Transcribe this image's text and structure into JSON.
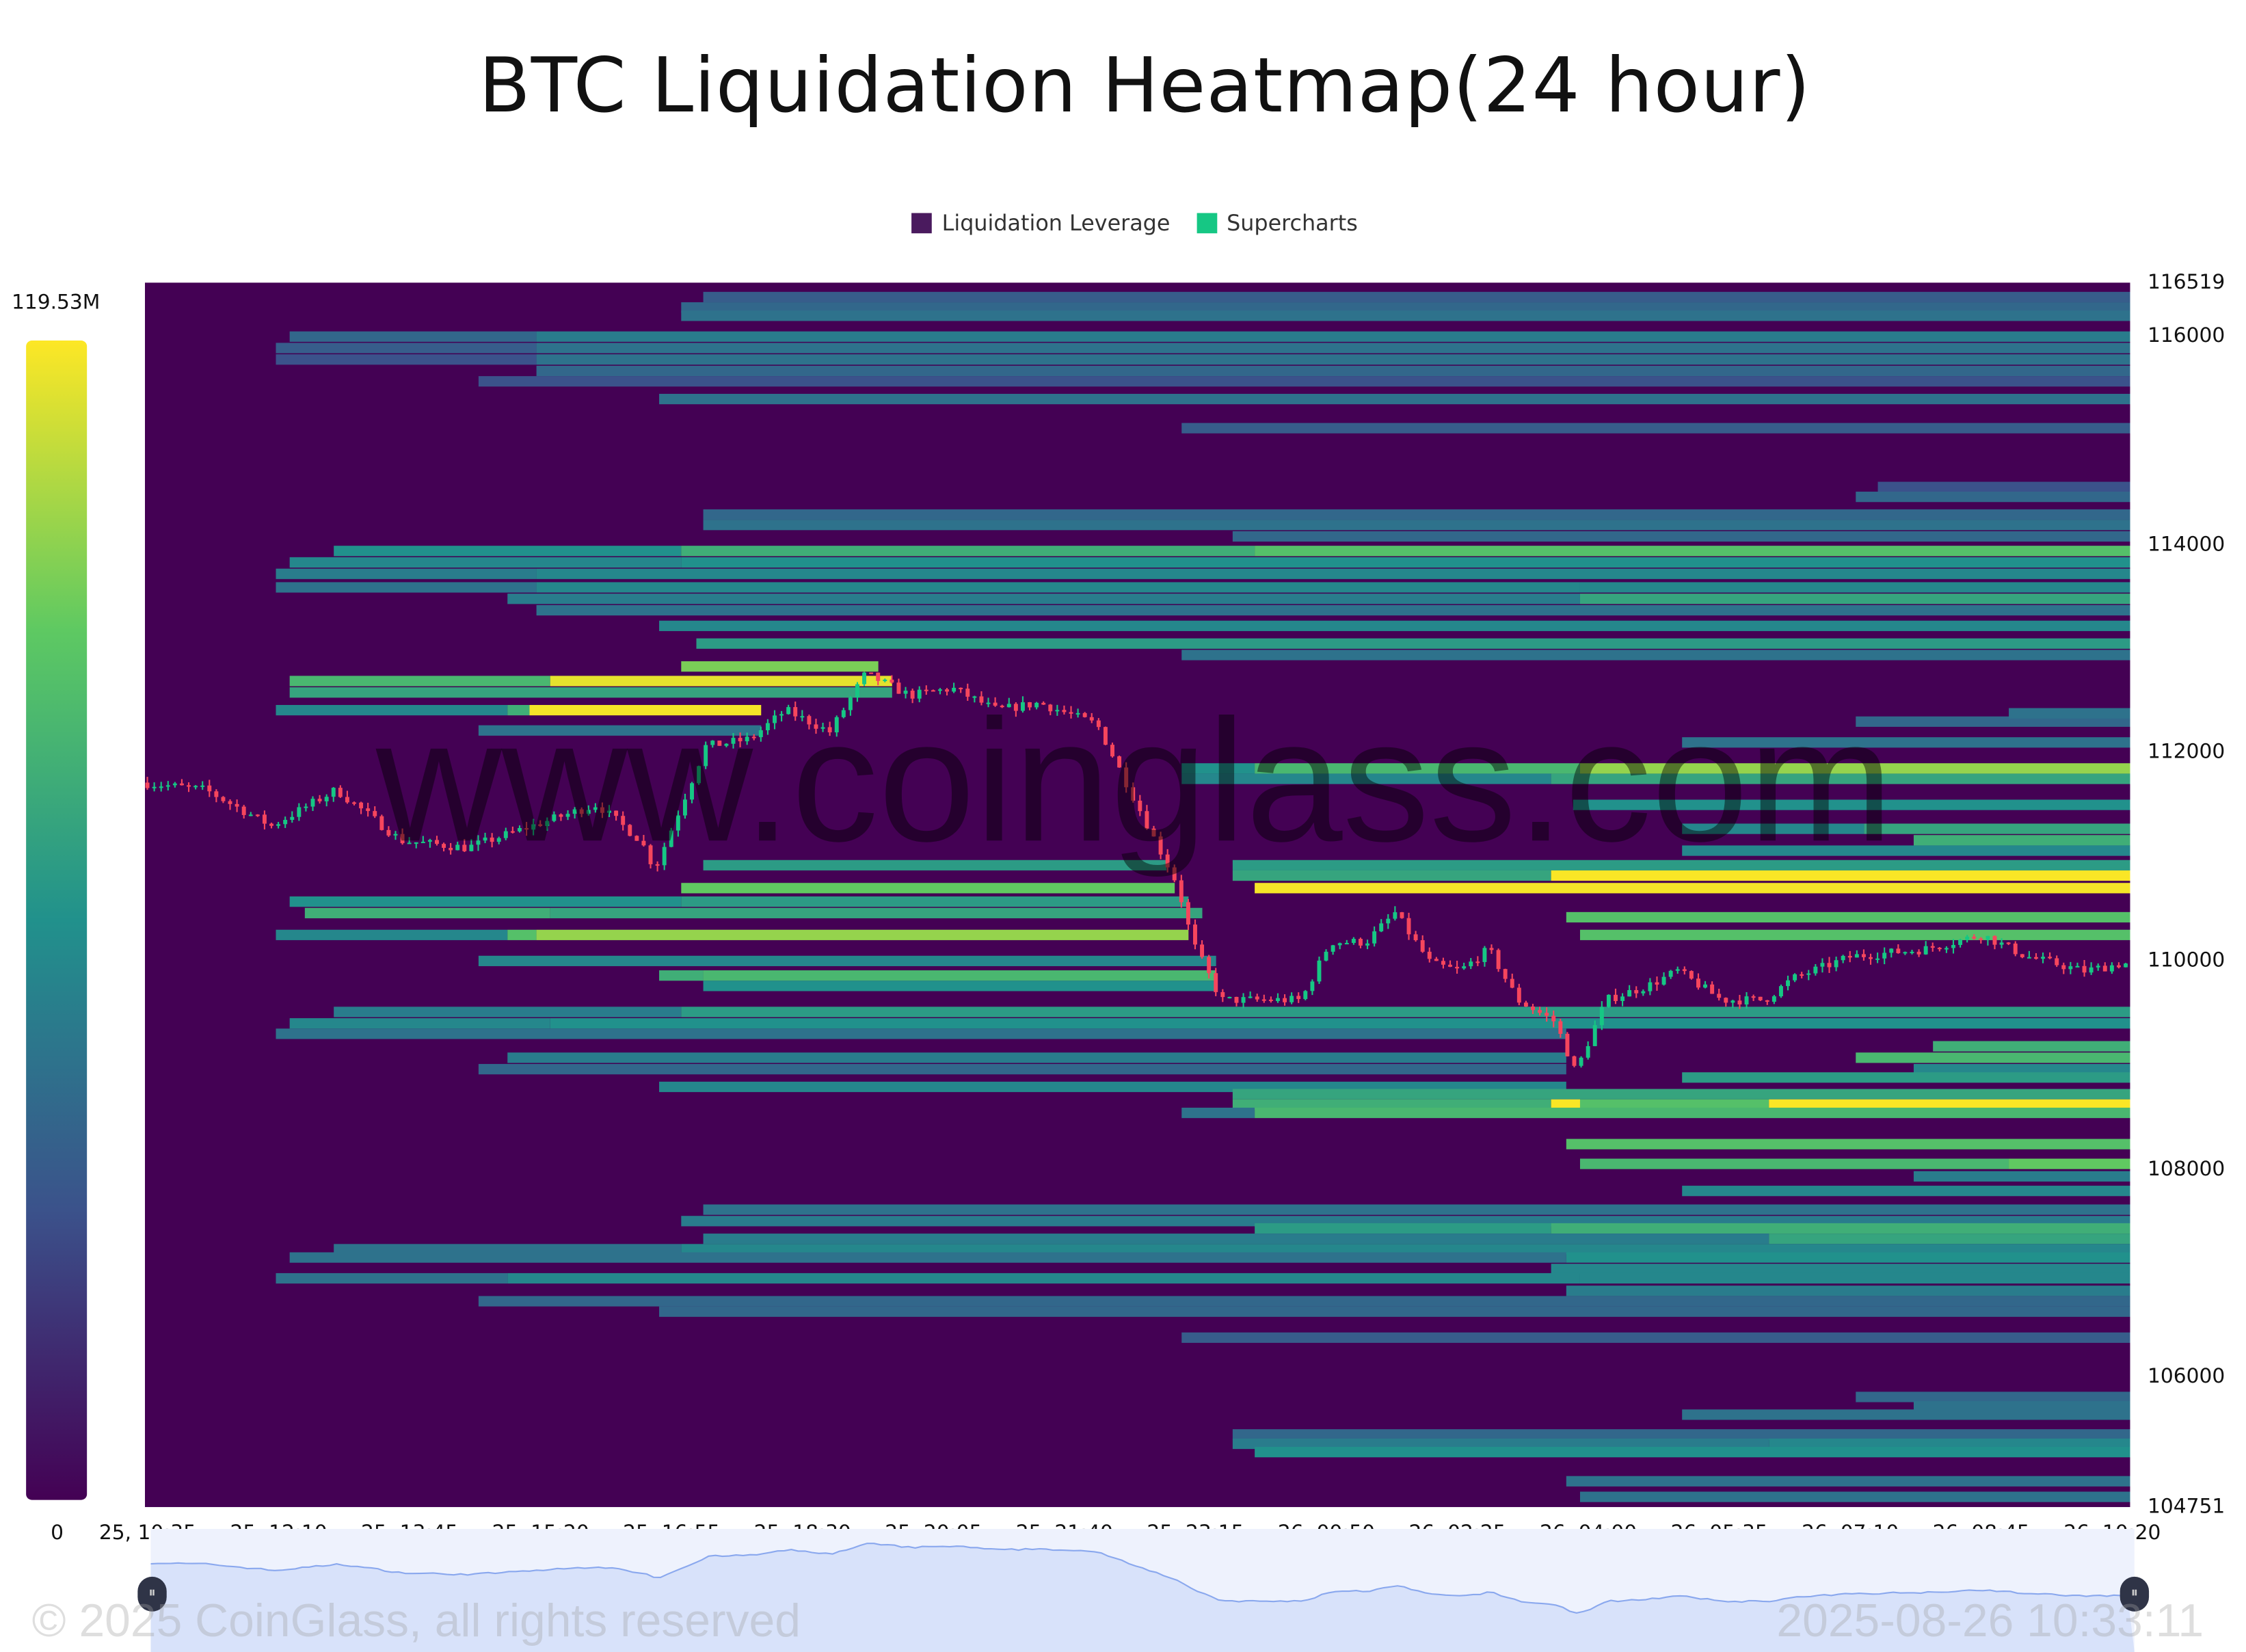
{
  "chart_data": {
    "type": "heatmap",
    "title": "BTC Liquidation Heatmap(24 hour)",
    "legend": [
      {
        "label": "Liquidation Leverage",
        "color": "#440154"
      },
      {
        "label": "Supercharts",
        "color": "#16c784"
      }
    ],
    "legend_placement": "top",
    "y_range": [
      104751,
      116519
    ],
    "y_ticks": [
      "116519",
      "116000",
      "114000",
      "112000",
      "110000",
      "108000",
      "106000",
      "104751"
    ],
    "x_start": "25 10:33",
    "x_end": "26 10:33",
    "x_ticks": [
      "25, 10:35",
      "25, 12:10",
      "25, 13:45",
      "25, 15:20",
      "25, 16:55",
      "25, 18:30",
      "25, 20:05",
      "25, 21:40",
      "25, 23:15",
      "26, 00:50",
      "26, 02:25",
      "26, 04:00",
      "26, 05:35",
      "26, 07:10",
      "26, 08:45",
      "26, 10:20"
    ],
    "colorbar": {
      "max_label": "119.53M",
      "min_label": "0",
      "max": 119.53,
      "colors": [
        "#440154",
        "#3b528b",
        "#21918c",
        "#5ec962",
        "#fde725"
      ]
    },
    "candle_colors": {
      "up": "#16c784",
      "down": "#f6465d"
    },
    "bands": [
      {
        "price": 116380,
        "seg": [
          [
            "25 17:18",
            35
          ]
        ]
      },
      {
        "price": 116280,
        "seg": [
          [
            "25 17:02",
            40
          ]
        ]
      },
      {
        "price": 116200,
        "seg": [
          [
            "25 17:02",
            45
          ]
        ]
      },
      {
        "price": 116000,
        "seg": [
          [
            "25 12:18",
            40
          ],
          [
            "25 15:17",
            50
          ]
        ]
      },
      {
        "price": 115890,
        "seg": [
          [
            "25 12:08",
            35
          ],
          [
            "25 15:17",
            45
          ]
        ]
      },
      {
        "price": 115780,
        "seg": [
          [
            "25 12:08",
            30
          ],
          [
            "25 15:17",
            45
          ]
        ]
      },
      {
        "price": 115670,
        "seg": [
          [
            "25 15:17",
            40
          ]
        ]
      },
      {
        "price": 115570,
        "seg": [
          [
            "25 14:35",
            30
          ]
        ]
      },
      {
        "price": 115400,
        "seg": [
          [
            "25 16:46",
            45
          ]
        ]
      },
      {
        "price": 115120,
        "seg": [
          [
            "25 23:05",
            35
          ]
        ]
      },
      {
        "price": 114555,
        "seg": [
          [
            "26 07:30",
            30
          ]
        ]
      },
      {
        "price": 114460,
        "seg": [
          [
            "26 07:14",
            40
          ]
        ]
      },
      {
        "price": 114290,
        "seg": [
          [
            "25 17:18",
            40
          ]
        ]
      },
      {
        "price": 114190,
        "seg": [
          [
            "25 17:18",
            45
          ]
        ]
      },
      {
        "price": 114080,
        "seg": [
          [
            "25 23:42",
            40
          ]
        ]
      },
      {
        "price": 113940,
        "seg": [
          [
            "25 12:50",
            60
          ],
          [
            "25 17:02",
            75
          ],
          [
            "25 23:58",
            85
          ]
        ]
      },
      {
        "price": 113830,
        "seg": [
          [
            "25 12:18",
            55
          ],
          [
            "25 17:02",
            60
          ]
        ]
      },
      {
        "price": 113720,
        "seg": [
          [
            "25 12:08",
            50
          ],
          [
            "25 15:17",
            55
          ]
        ]
      },
      {
        "price": 113590,
        "seg": [
          [
            "25 12:08",
            45
          ],
          [
            "25 15:17",
            55
          ],
          [
            "26 03:54",
            55
          ]
        ]
      },
      {
        "price": 113480,
        "seg": [
          [
            "25 14:56",
            50
          ],
          [
            "26 03:54",
            70
          ]
        ]
      },
      {
        "price": 113370,
        "seg": [
          [
            "25 15:17",
            45
          ]
        ]
      },
      {
        "price": 113220,
        "seg": [
          [
            "25 16:46",
            55
          ]
        ]
      },
      {
        "price": 113050,
        "seg": [
          [
            "25 17:13",
            65
          ]
        ]
      },
      {
        "price": 112940,
        "seg": [
          [
            "25 23:05",
            45
          ]
        ]
      },
      {
        "price": 112830,
        "seg": [
          [
            "25 17:02",
            95
          ],
          [
            "25 19:25",
            0
          ]
        ]
      },
      {
        "price": 112690,
        "seg": [
          [
            "25 12:18",
            80
          ],
          [
            "25 15:27",
            115
          ],
          [
            "25 19:35",
            0
          ]
        ]
      },
      {
        "price": 112580,
        "seg": [
          [
            "25 12:18",
            70
          ],
          [
            "25 19:35",
            0
          ]
        ]
      },
      {
        "price": 112410,
        "seg": [
          [
            "25 12:08",
            55
          ],
          [
            "25 14:56",
            75
          ],
          [
            "25 15:12",
            118
          ],
          [
            "25 18:00",
            0
          ]
        ]
      },
      {
        "price": 112300,
        "seg": [
          [
            "26 07:14",
            40
          ]
        ]
      },
      {
        "price": 112380,
        "seg": [
          [
            "26 09:05",
            45
          ]
        ]
      },
      {
        "price": 112215,
        "seg": [
          [
            "25 14:35",
            45
          ],
          [
            "25 18:00",
            0
          ]
        ]
      },
      {
        "price": 112100,
        "seg": [
          [
            "26 05:08",
            45
          ]
        ]
      },
      {
        "price": 111850,
        "seg": [
          [
            "25 23:05",
            60
          ],
          [
            "25 23:58",
            80
          ],
          [
            "26 03:54",
            100
          ]
        ]
      },
      {
        "price": 111750,
        "seg": [
          [
            "25 23:05",
            55
          ],
          [
            "26 03:33",
            70
          ]
        ]
      },
      {
        "price": 111500,
        "seg": [
          [
            "26 03:49",
            60
          ]
        ]
      },
      {
        "price": 111270,
        "seg": [
          [
            "26 05:08",
            55
          ],
          [
            "26 07:20",
            70
          ]
        ]
      },
      {
        "price": 111160,
        "seg": [
          [
            "26 07:56",
            75
          ]
        ]
      },
      {
        "price": 111060,
        "seg": [
          [
            "26 05:08",
            55
          ]
        ]
      },
      {
        "price": 110920,
        "seg": [
          [
            "25 17:18",
            65
          ],
          [
            "25 22:54",
            0
          ],
          [
            "25 23:42",
            65
          ]
        ]
      },
      {
        "price": 110820,
        "seg": [
          [
            "25 23:42",
            70
          ],
          [
            "26 03:33",
            119
          ]
        ]
      },
      {
        "price": 110700,
        "seg": [
          [
            "25 17:02",
            90
          ],
          [
            "25 23:00",
            0
          ],
          [
            "25 23:58",
            118
          ]
        ]
      },
      {
        "price": 110570,
        "seg": [
          [
            "25 12:18",
            60
          ],
          [
            "25 17:02",
            65
          ],
          [
            "25 23:10",
            0
          ]
        ]
      },
      {
        "price": 110460,
        "seg": [
          [
            "25 12:29",
            75
          ],
          [
            "25 15:27",
            70
          ],
          [
            "25 23:20",
            0
          ]
        ]
      },
      {
        "price": 110420,
        "seg": [
          [
            "26 03:44",
            85
          ]
        ]
      },
      {
        "price": 110250,
        "seg": [
          [
            "25 12:08",
            55
          ],
          [
            "25 14:56",
            85
          ],
          [
            "25 15:17",
            100
          ],
          [
            "25 23:10",
            0
          ],
          [
            "26 03:54",
            85
          ]
        ]
      },
      {
        "price": 110000,
        "seg": [
          [
            "25 14:35",
            55
          ],
          [
            "25 23:30",
            0
          ]
        ]
      },
      {
        "price": 109860,
        "seg": [
          [
            "25 16:46",
            75
          ],
          [
            "25 17:18",
            80
          ],
          [
            "25 23:30",
            0
          ]
        ]
      },
      {
        "price": 109760,
        "seg": [
          [
            "25 17:18",
            60
          ],
          [
            "25 23:30",
            0
          ]
        ]
      },
      {
        "price": 109510,
        "seg": [
          [
            "25 12:50",
            50
          ],
          [
            "25 17:02",
            65
          ]
        ]
      },
      {
        "price": 109400,
        "seg": [
          [
            "25 12:18",
            55
          ],
          [
            "25 15:27",
            60
          ]
        ]
      },
      {
        "price": 109300,
        "seg": [
          [
            "25 12:08",
            45
          ],
          [
            "26 03:44",
            0
          ]
        ]
      },
      {
        "price": 109180,
        "seg": [
          [
            "26 08:10",
            75
          ]
        ]
      },
      {
        "price": 109070,
        "seg": [
          [
            "25 14:56",
            50
          ],
          [
            "26 03:44",
            0
          ],
          [
            "26 07:14",
            80
          ]
        ]
      },
      {
        "price": 108960,
        "seg": [
          [
            "25 14:35",
            40
          ],
          [
            "26 03:44",
            0
          ],
          [
            "26 07:56",
            55
          ]
        ]
      },
      {
        "price": 108880,
        "seg": [
          [
            "26 05:08",
            65
          ]
        ]
      },
      {
        "price": 108790,
        "seg": [
          [
            "25 16:46",
            55
          ],
          [
            "26 03:44",
            0
          ]
        ]
      },
      {
        "price": 108720,
        "seg": [
          [
            "25 23:42",
            70
          ]
        ]
      },
      {
        "price": 108620,
        "seg": [
          [
            "25 23:42",
            75
          ],
          [
            "26 03:33",
            119
          ],
          [
            "26 03:54",
            85
          ],
          [
            "26 06:11",
            119
          ]
        ]
      },
      {
        "price": 108540,
        "seg": [
          [
            "25 23:05",
            45
          ],
          [
            "25 23:58",
            80
          ]
        ]
      },
      {
        "price": 108240,
        "seg": [
          [
            "26 03:44",
            85
          ]
        ]
      },
      {
        "price": 108050,
        "seg": [
          [
            "26 03:54",
            80
          ],
          [
            "26 09:05",
            90
          ]
        ]
      },
      {
        "price": 107930,
        "seg": [
          [
            "26 07:56",
            50
          ]
        ]
      },
      {
        "price": 107790,
        "seg": [
          [
            "26 05:08",
            55
          ]
        ]
      },
      {
        "price": 107610,
        "seg": [
          [
            "25 17:18",
            45
          ]
        ]
      },
      {
        "price": 107500,
        "seg": [
          [
            "25 17:02",
            50
          ]
        ]
      },
      {
        "price": 107430,
        "seg": [
          [
            "25 23:58",
            65
          ],
          [
            "26 03:33",
            75
          ]
        ]
      },
      {
        "price": 107330,
        "seg": [
          [
            "25 17:18",
            50
          ],
          [
            "26 06:11",
            70
          ]
        ]
      },
      {
        "price": 107230,
        "seg": [
          [
            "25 12:50",
            45
          ],
          [
            "25 17:02",
            55
          ]
        ]
      },
      {
        "price": 107150,
        "seg": [
          [
            "25 12:18",
            45
          ],
          [
            "26 03:44",
            60
          ]
        ]
      },
      {
        "price": 107040,
        "seg": [
          [
            "26 03:33",
            55
          ]
        ]
      },
      {
        "price": 106950,
        "seg": [
          [
            "25 12:08",
            45
          ],
          [
            "25 14:56",
            55
          ],
          [
            "26 03:54",
            55
          ]
        ]
      },
      {
        "price": 106830,
        "seg": [
          [
            "26 03:44",
            50
          ]
        ]
      },
      {
        "price": 106730,
        "seg": [
          [
            "25 14:35",
            40
          ]
        ]
      },
      {
        "price": 106630,
        "seg": [
          [
            "25 16:46",
            40
          ]
        ]
      },
      {
        "price": 106380,
        "seg": [
          [
            "25 23:05",
            35
          ]
        ]
      },
      {
        "price": 105810,
        "seg": [
          [
            "26 07:14",
            40
          ]
        ]
      },
      {
        "price": 105720,
        "seg": [
          [
            "26 07:56",
            45
          ]
        ]
      },
      {
        "price": 105640,
        "seg": [
          [
            "26 05:08",
            45
          ]
        ]
      },
      {
        "price": 105450,
        "seg": [
          [
            "25 23:42",
            40
          ]
        ]
      },
      {
        "price": 105360,
        "seg": [
          [
            "25 23:42",
            50
          ],
          [
            "26 06:11",
            55
          ]
        ]
      },
      {
        "price": 105280,
        "seg": [
          [
            "25 23:58",
            60
          ]
        ]
      },
      {
        "price": 105000,
        "seg": [
          [
            "26 03:44",
            45
          ]
        ]
      },
      {
        "price": 104850,
        "seg": [
          [
            "26 03:54",
            45
          ]
        ]
      }
    ],
    "price_path": [
      [
        "25 10:33",
        111714
      ],
      [
        "25 11:20",
        111645
      ],
      [
        "25 12:08",
        111297
      ],
      [
        "25 12:55",
        111645
      ],
      [
        "25 13:42",
        111157
      ],
      [
        "25 14:30",
        111087
      ],
      [
        "25 15:17",
        111297
      ],
      [
        "25 16:04",
        111505
      ],
      [
        "25 16:36",
        111157
      ],
      [
        "25 16:46",
        110879
      ],
      [
        "25 17:23",
        112062
      ],
      [
        "25 17:55",
        112132
      ],
      [
        "25 18:21",
        112410
      ],
      [
        "25 18:53",
        112202
      ],
      [
        "25 19:19",
        112759
      ],
      [
        "25 19:51",
        112550
      ],
      [
        "25 20:22",
        112620
      ],
      [
        "25 20:54",
        112410
      ],
      [
        "25 21:25",
        112480
      ],
      [
        "25 22:07",
        112271
      ],
      [
        "25 22:28",
        111714
      ],
      [
        "25 22:49",
        111157
      ],
      [
        "25 23:05",
        110739
      ],
      [
        "25 23:16",
        110182
      ],
      [
        "25 23:37",
        109625
      ],
      [
        "26 00:03",
        109625
      ],
      [
        "26 00:35",
        109625
      ],
      [
        "26 00:56",
        110182
      ],
      [
        "26 01:22",
        110182
      ],
      [
        "26 01:43",
        110461
      ],
      [
        "26 02:09",
        109973
      ],
      [
        "26 02:30",
        109903
      ],
      [
        "26 02:51",
        110112
      ],
      [
        "26 03:12",
        109625
      ],
      [
        "26 03:39",
        109416
      ],
      [
        "26 03:54",
        108929
      ],
      [
        "26 04:16",
        109625
      ],
      [
        "26 04:47",
        109764
      ],
      [
        "26 05:08",
        109903
      ],
      [
        "26 05:40",
        109625
      ],
      [
        "26 06:11",
        109625
      ],
      [
        "26 06:32",
        109834
      ],
      [
        "26 07:14",
        110043
      ],
      [
        "26 08:07",
        110112
      ],
      [
        "26 08:49",
        110252
      ],
      [
        "26 09:21",
        110043
      ],
      [
        "26 10:03",
        109903
      ],
      [
        "26 10:29",
        109973
      ]
    ]
  },
  "watermark": "www.coinglass.com",
  "footer": {
    "copyright": "© 2025 CoinGlass, all rights reserved",
    "timestamp": "2025-08-26 10:33:11"
  },
  "navigator": {
    "handle_left": "⏸",
    "handle_right": "⏸"
  }
}
